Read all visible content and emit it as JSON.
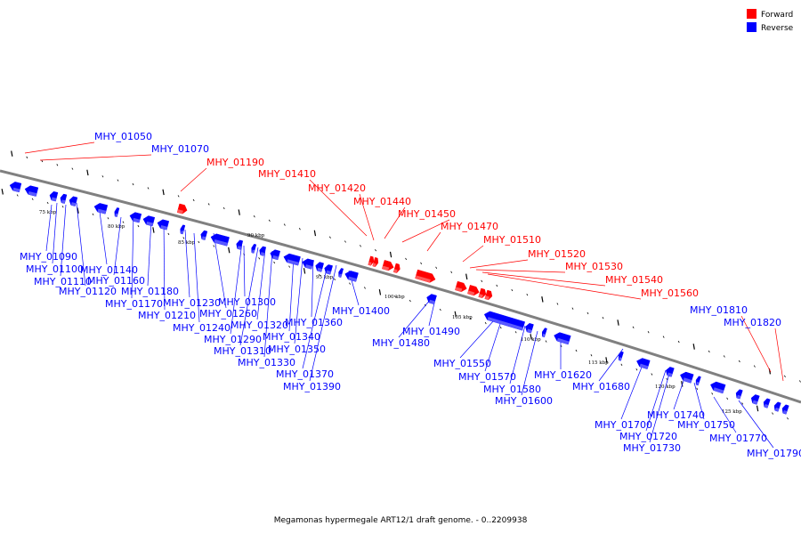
{
  "legend": {
    "forward": {
      "label": "Forward",
      "color": "#ff0000"
    },
    "reverse": {
      "label": "Reverse",
      "color": "#0000ff"
    }
  },
  "caption": "Megamonas hypermegale ART12/1 draft genome. - 0..2209938",
  "colors": {
    "backbone": "#808080",
    "forward": "#ff0000",
    "reverse": "#0000ff"
  },
  "scale": {
    "unit": "kbp",
    "ticks": [
      {
        "label": "75 kbp"
      },
      {
        "label": "80 kbp"
      },
      {
        "label": "85 kbp"
      },
      {
        "label": "90 kbp"
      },
      {
        "label": "95 kbp"
      },
      {
        "label": "100 kbp"
      },
      {
        "label": "105 kbp"
      },
      {
        "label": "110 kbp"
      },
      {
        "label": "115 kbp"
      },
      {
        "label": "120 kbp"
      },
      {
        "label": "125 kbp"
      }
    ]
  },
  "genes": {
    "forward_above": [
      "MHY_01050",
      "MHY_01070",
      "MHY_01190",
      "MHY_01410",
      "MHY_01420",
      "MHY_01440",
      "MHY_01450",
      "MHY_01470",
      "MHY_01510",
      "MHY_01520",
      "MHY_01530",
      "MHY_01540",
      "MHY_01560",
      "MHY_01810",
      "MHY_01820"
    ],
    "reverse_below": [
      "MHY_01090",
      "MHY_01100",
      "MHY_01110",
      "MHY_01120",
      "MHY_01140",
      "MHY_01160",
      "MHY_01170",
      "MHY_01180",
      "MHY_01210",
      "MHY_01230",
      "MHY_01240",
      "MHY_01260",
      "MHY_01290",
      "MHY_01300",
      "MHY_01310",
      "MHY_01320",
      "MHY_01330",
      "MHY_01340",
      "MHY_01350",
      "MHY_01360",
      "MHY_01370",
      "MHY_01390",
      "MHY_01400",
      "MHY_01480",
      "MHY_01490",
      "MHY_01550",
      "MHY_01570",
      "MHY_01580",
      "MHY_01600",
      "MHY_01620",
      "MHY_01680",
      "MHY_01700",
      "MHY_01720",
      "MHY_01730",
      "MHY_01740",
      "MHY_01750",
      "MHY_01770",
      "MHY_01790"
    ]
  }
}
